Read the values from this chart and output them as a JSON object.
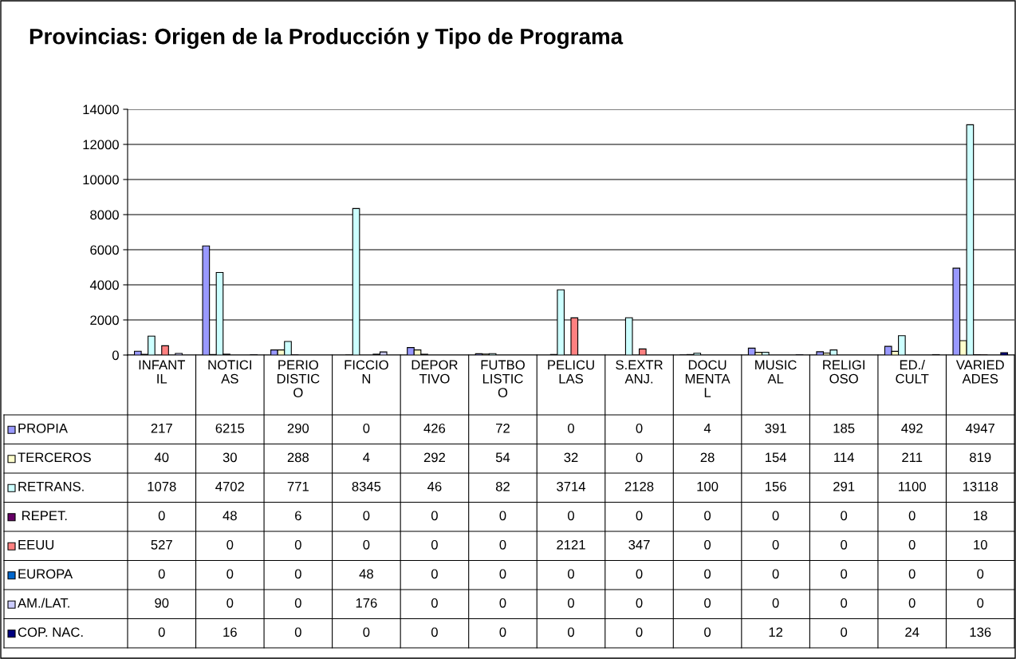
{
  "chart_data": {
    "type": "bar",
    "title": "Provincias: Origen de la Producción y Tipo de Programa",
    "categories": [
      "INFANT\nIL",
      "NOTICI\nAS",
      "PERIO\nDISTIC\nO",
      "FICCIO\nN",
      "DEPOR\nTIVO",
      "FUTBO\nLISTIC\nO",
      "PELICU\nLAS",
      "S.EXTR\nANJ.",
      "DOCU\nMENTA\nL",
      "MUSIC\nAL",
      "RELIGI\nOSO",
      "ED./\nCULT",
      "VARIED\nADES"
    ],
    "series": [
      {
        "name": "PROPIA",
        "color": "#9999ff",
        "values": [
          217,
          6215,
          290,
          0,
          426,
          72,
          0,
          0,
          4,
          391,
          185,
          492,
          4947
        ]
      },
      {
        "name": "TERCEROS",
        "color": "#ffffcc",
        "values": [
          40,
          30,
          288,
          4,
          292,
          54,
          32,
          0,
          28,
          154,
          114,
          211,
          819
        ]
      },
      {
        "name": "RETRANS.",
        "color": "#ccffff",
        "values": [
          1078,
          4702,
          771,
          8345,
          46,
          82,
          3714,
          2128,
          100,
          156,
          291,
          1100,
          13118
        ]
      },
      {
        "name": " REPET.",
        "color": "#660066",
        "values": [
          0,
          48,
          6,
          0,
          0,
          0,
          0,
          0,
          0,
          0,
          0,
          0,
          18
        ]
      },
      {
        "name": "EEUU",
        "color": "#ff8080",
        "values": [
          527,
          0,
          0,
          0,
          0,
          0,
          2121,
          347,
          0,
          0,
          0,
          0,
          10
        ]
      },
      {
        "name": "EUROPA",
        "color": "#0066cc",
        "values": [
          0,
          0,
          0,
          48,
          0,
          0,
          0,
          0,
          0,
          0,
          0,
          0,
          0
        ]
      },
      {
        "name": "AM./LAT.",
        "color": "#ccccff",
        "values": [
          90,
          0,
          0,
          176,
          0,
          0,
          0,
          0,
          0,
          0,
          0,
          0,
          0
        ]
      },
      {
        "name": "COP. NAC.",
        "color": "#000080",
        "values": [
          0,
          16,
          0,
          0,
          0,
          0,
          0,
          0,
          0,
          12,
          0,
          24,
          136
        ]
      }
    ],
    "ylim": [
      0,
      14000
    ],
    "yticks": [
      0,
      2000,
      4000,
      6000,
      8000,
      10000,
      12000,
      14000
    ],
    "grid": "y",
    "legend": "bottom",
    "data_labels": true
  }
}
